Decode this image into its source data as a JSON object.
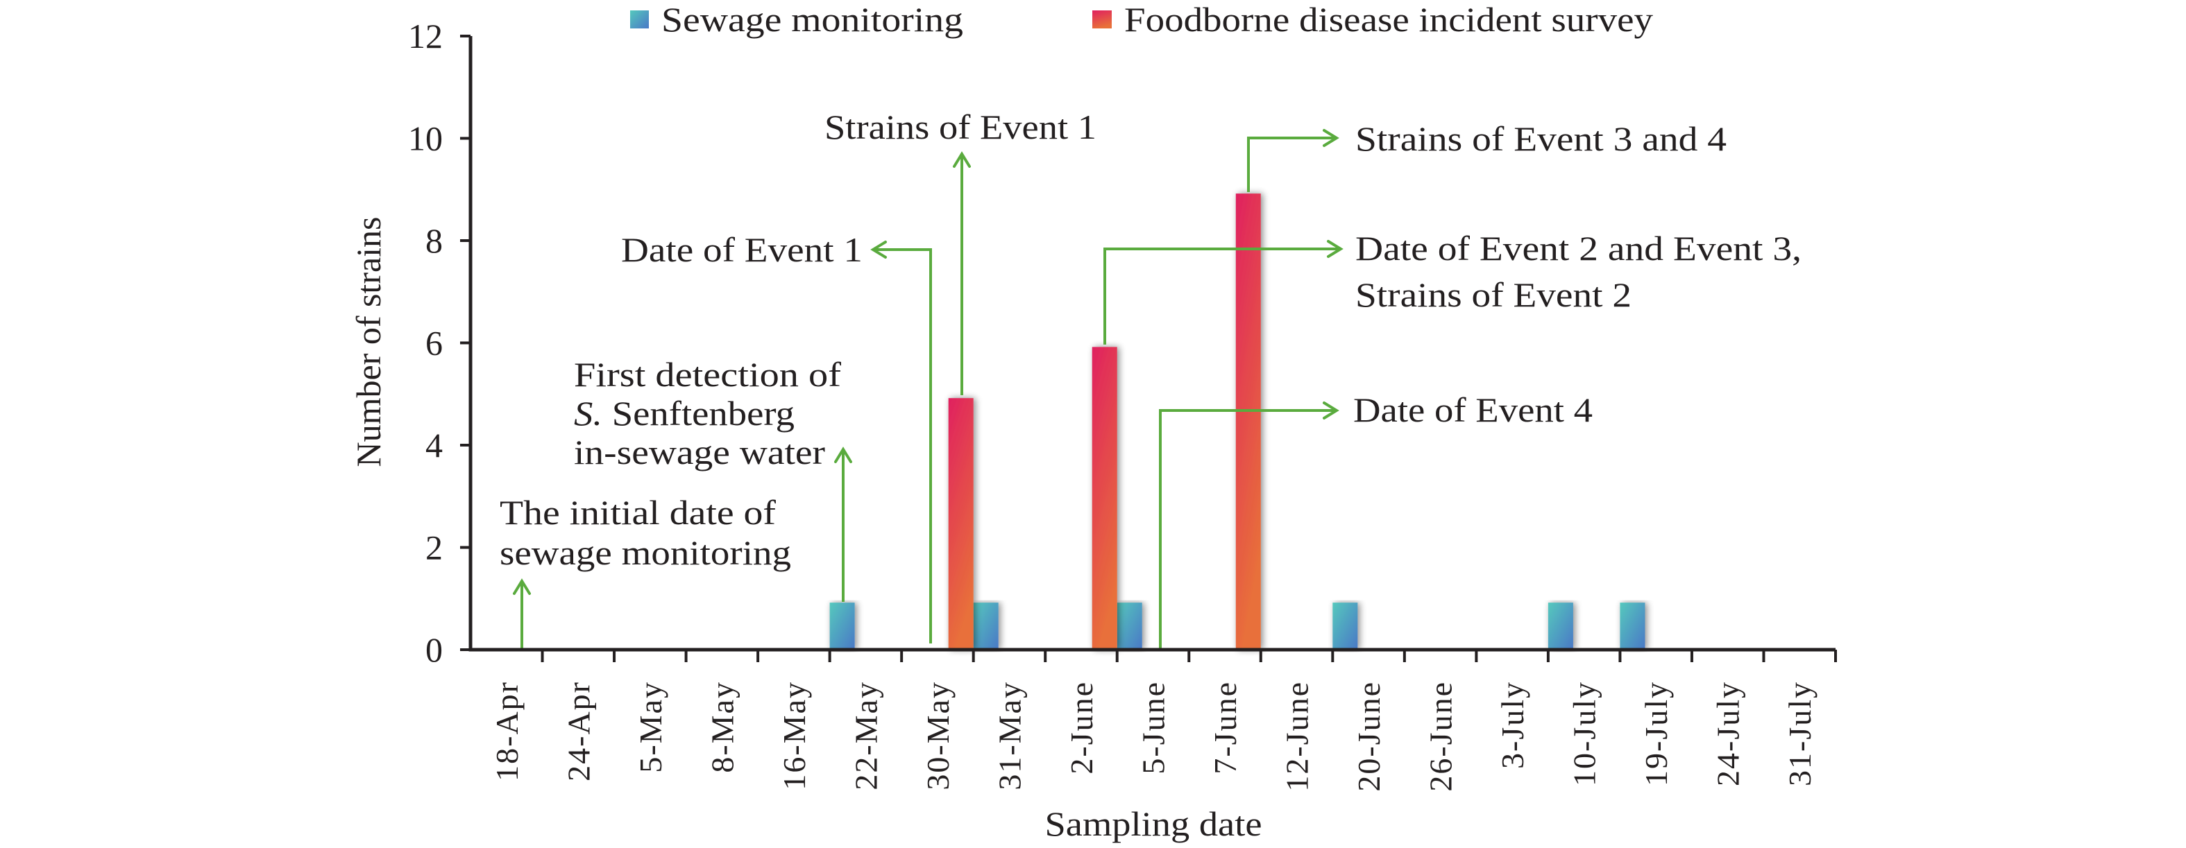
{
  "chart_data": {
    "type": "bar",
    "title": "",
    "xlabel": "Sampling date",
    "ylabel": "Number of strains",
    "ylim": [
      0,
      12
    ],
    "yticks": [
      0,
      2,
      4,
      6,
      8,
      10,
      12
    ],
    "grid": false,
    "legend_position": "top",
    "categories": [
      "18-Apr",
      "24-Apr",
      "5-May",
      "8-May",
      "16-May",
      "22-May",
      "30-May",
      "31-May",
      "2-June",
      "5-June",
      "7-June",
      "12-June",
      "20-June",
      "26-June",
      "3-July",
      "10-July",
      "19-July",
      "24-July",
      "31-July"
    ],
    "series": [
      {
        "name": "Sewage monitoring",
        "color_top": "#55c8bd",
        "color_bottom": "#4a78c6",
        "values": [
          0,
          0,
          0,
          0,
          0,
          1,
          0,
          1,
          0,
          1,
          0,
          0,
          1,
          0,
          0,
          1,
          1,
          0,
          0
        ]
      },
      {
        "name": "Foodborne disease incident survey",
        "color_top": "#e0215f",
        "color_bottom": "#e8703a",
        "values": [
          0,
          0,
          0,
          0,
          0,
          0,
          5,
          0,
          6,
          0,
          9,
          0,
          0,
          0,
          0,
          0,
          0,
          0,
          0
        ]
      }
    ],
    "annotations": [
      {
        "id": "initial",
        "lines": [
          "The initial date of",
          "sewage monitoring"
        ]
      },
      {
        "id": "first-detection",
        "lines": [
          "First detection of",
          "S. Senftenberg",
          "in-sewage water"
        ]
      },
      {
        "id": "date-event-1",
        "lines": [
          "Date of Event 1"
        ]
      },
      {
        "id": "strains-event-1",
        "lines": [
          "Strains of Event 1"
        ]
      },
      {
        "id": "strains-event-3-4",
        "lines": [
          "Strains of Event 3 and 4"
        ]
      },
      {
        "id": "date-event-2-3",
        "lines": [
          "Date of Event 2 and Event 3,",
          "Strains of Event 2"
        ]
      },
      {
        "id": "date-event-4",
        "lines": [
          "Date of Event 4"
        ]
      }
    ],
    "annotation_color": "#5aab3e"
  }
}
